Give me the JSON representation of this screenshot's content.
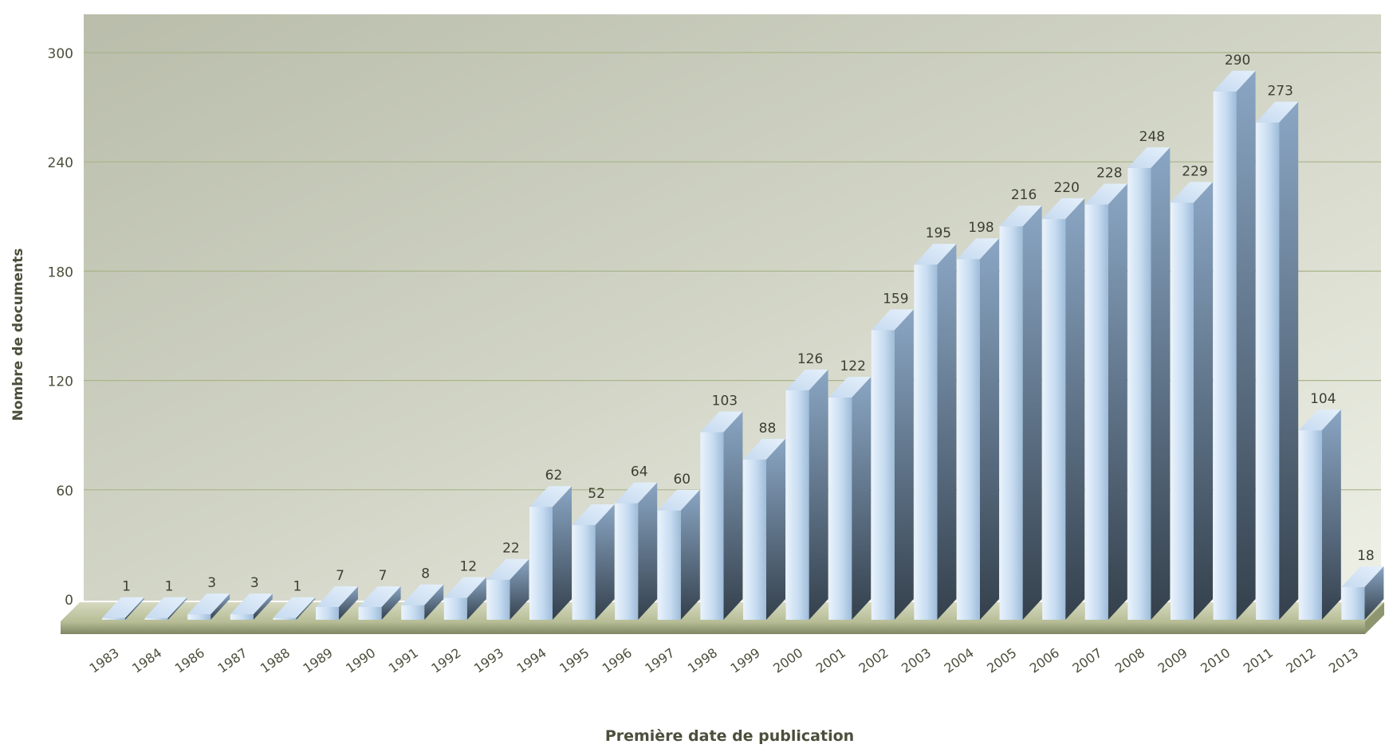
{
  "chart_data": {
    "type": "bar",
    "title": "",
    "xlabel": "Première date de publication",
    "ylabel": "Nombre de documents",
    "ylim": [
      0,
      300
    ],
    "yticks": [
      0,
      60,
      120,
      180,
      240,
      300
    ],
    "grid": true,
    "legend": "none",
    "categories": [
      "1983",
      "1984",
      "1986",
      "1987",
      "1988",
      "1989",
      "1990",
      "1991",
      "1992",
      "1993",
      "1994",
      "1995",
      "1996",
      "1997",
      "1998",
      "1999",
      "2000",
      "2001",
      "2002",
      "2003",
      "2004",
      "2005",
      "2006",
      "2007",
      "2008",
      "2009",
      "2010",
      "2011",
      "2012",
      "2013"
    ],
    "values": [
      1,
      1,
      3,
      3,
      1,
      7,
      7,
      8,
      12,
      22,
      62,
      52,
      64,
      60,
      103,
      88,
      126,
      122,
      159,
      195,
      198,
      216,
      220,
      228,
      248,
      229,
      290,
      273,
      104,
      18
    ],
    "colors": {
      "bar_light": "#d6e6f7",
      "bar_mid": "#9fb9d5",
      "bar_dark": "#3c4c5e",
      "floor": "#c9cfb0",
      "grid": "#a9b58a",
      "text": "#4b4f3b"
    }
  }
}
